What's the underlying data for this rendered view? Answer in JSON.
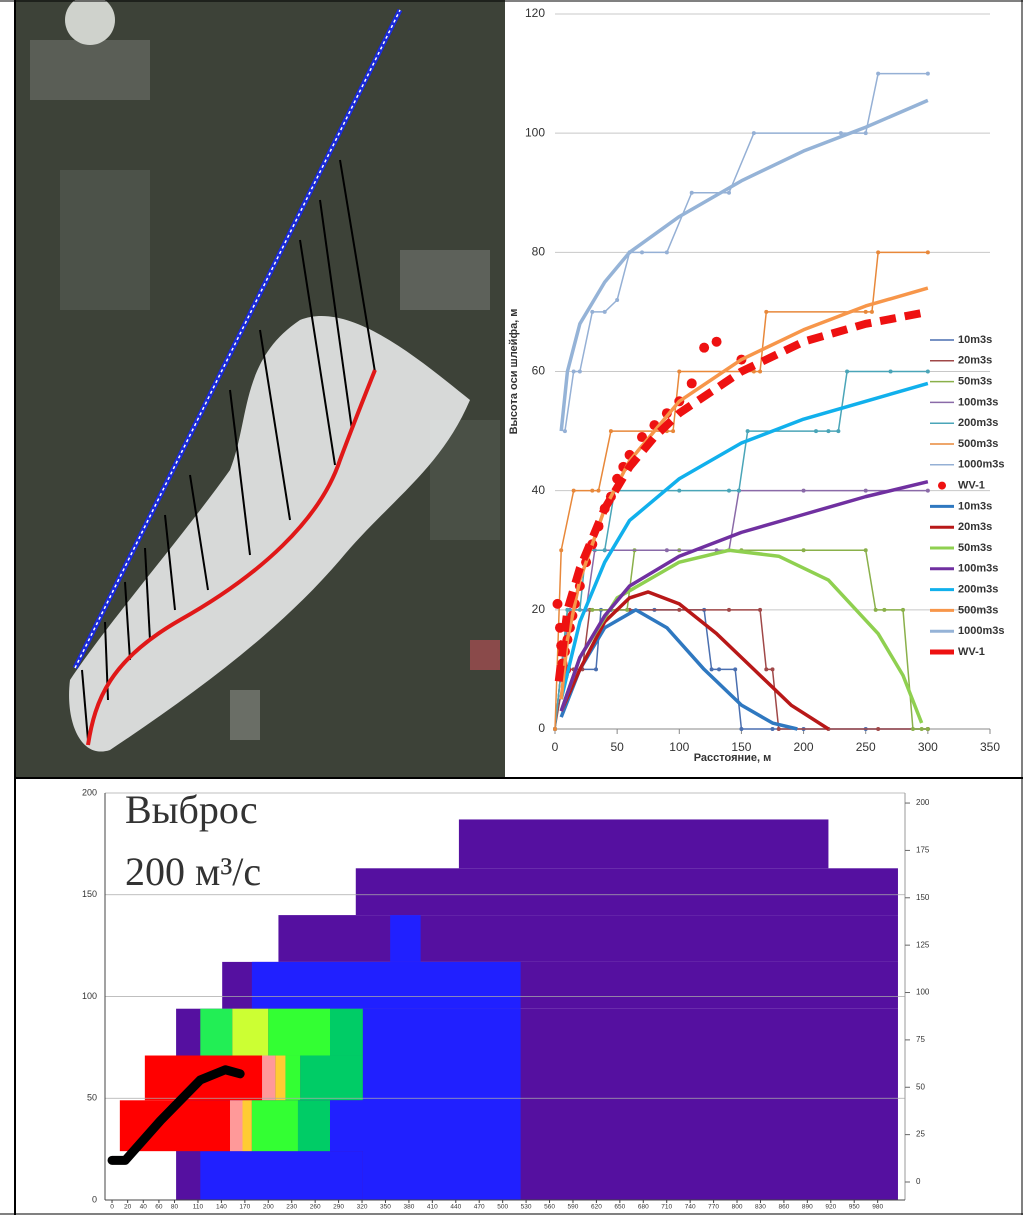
{
  "chart_data": [
    {
      "type": "line",
      "xlabel": "Расстояние, м",
      "ylabel": "Высота оси шлейфа, м",
      "xlim": [
        0,
        350
      ],
      "xticks": [
        0,
        50,
        100,
        150,
        200,
        250,
        300,
        350
      ],
      "ylim": [
        0,
        120
      ],
      "yticks": [
        0,
        20,
        40,
        60,
        80,
        100,
        120
      ],
      "grid": true,
      "legend": "right",
      "series": [
        {
          "name": "10m3s",
          "color": "#4a6fb0",
          "style": "steps",
          "x": [
            0,
            5,
            10,
            33,
            37,
            45,
            80,
            120,
            126,
            132,
            145,
            150,
            175,
            200,
            250,
            300
          ],
          "values": [
            0,
            10,
            10,
            10,
            20,
            20,
            20,
            20,
            10,
            10,
            10,
            0,
            0,
            0,
            0,
            0
          ]
        },
        {
          "name": "20m3s",
          "color": "#a04848",
          "style": "steps",
          "x": [
            0,
            8,
            15,
            22,
            28,
            60,
            100,
            140,
            165,
            170,
            175,
            180,
            220,
            260,
            300
          ],
          "values": [
            0,
            10,
            10,
            10,
            20,
            20,
            20,
            20,
            20,
            10,
            10,
            0,
            0,
            0,
            0
          ]
        },
        {
          "name": "50m3s",
          "color": "#8ab04a",
          "style": "steps",
          "x": [
            0,
            10,
            30,
            50,
            58,
            64,
            100,
            150,
            200,
            250,
            258,
            265,
            280,
            288,
            295,
            300
          ],
          "values": [
            0,
            20,
            20,
            20,
            20,
            30,
            30,
            30,
            30,
            30,
            20,
            20,
            20,
            0,
            0,
            0
          ]
        },
        {
          "name": "100m3s",
          "color": "#8a6aa8",
          "style": "steps",
          "x": [
            0,
            5,
            12,
            25,
            32,
            40,
            90,
            130,
            140,
            148,
            200,
            250,
            300
          ],
          "values": [
            0,
            10,
            20,
            20,
            30,
            30,
            30,
            30,
            30,
            40,
            40,
            40,
            40
          ]
        },
        {
          "name": "200m3s",
          "color": "#4aa5b8",
          "style": "steps",
          "x": [
            0,
            10,
            20,
            25,
            40,
            48,
            100,
            140,
            148,
            155,
            210,
            220,
            228,
            235,
            270,
            300
          ],
          "values": [
            0,
            20,
            20,
            30,
            30,
            40,
            40,
            40,
            40,
            50,
            50,
            50,
            50,
            60,
            60,
            60
          ]
        },
        {
          "name": "500m3s",
          "color": "#e8883a",
          "style": "steps",
          "x": [
            0,
            5,
            15,
            30,
            35,
            45,
            90,
            95,
            100,
            160,
            165,
            170,
            250,
            255,
            260,
            300
          ],
          "values": [
            0,
            30,
            40,
            40,
            40,
            50,
            50,
            50,
            60,
            60,
            60,
            70,
            70,
            70,
            80,
            80
          ]
        },
        {
          "name": "1000m3s",
          "color": "#95b0d5",
          "style": "steps",
          "x": [
            8,
            15,
            20,
            30,
            40,
            50,
            60,
            70,
            90,
            110,
            140,
            160,
            230,
            250,
            260,
            300
          ],
          "values": [
            50,
            60,
            60,
            70,
            70,
            72,
            80,
            80,
            80,
            90,
            90,
            100,
            100,
            100,
            110,
            110
          ]
        },
        {
          "name": "WV-1",
          "color": "#ee1111",
          "style": "dots",
          "x": [
            2,
            4,
            5,
            6,
            7,
            8,
            9,
            10,
            12,
            14,
            16,
            20,
            25,
            30,
            35,
            40,
            45,
            50,
            55,
            60,
            70,
            80,
            90,
            100,
            110,
            120,
            130,
            150
          ],
          "values": [
            21,
            17,
            14,
            11,
            9,
            13,
            10,
            15,
            17,
            19,
            21,
            24,
            28,
            31,
            34,
            37,
            39,
            42,
            44,
            46,
            49,
            51,
            53,
            55,
            58,
            64,
            65,
            62
          ]
        },
        {
          "name": "10m3s",
          "color": "#2f78c0",
          "style": "line",
          "x": [
            5,
            20,
            40,
            65,
            90,
            120,
            150,
            175,
            195
          ],
          "values": [
            2,
            10,
            17,
            20,
            17,
            10,
            4,
            1,
            0
          ]
        },
        {
          "name": "20m3s",
          "color": "#b81818",
          "style": "line",
          "x": [
            5,
            20,
            40,
            60,
            75,
            100,
            130,
            160,
            190,
            220
          ],
          "values": [
            3,
            10,
            18,
            22,
            23,
            21,
            16,
            10,
            4,
            0
          ]
        },
        {
          "name": "50m3s",
          "color": "#8fd050",
          "style": "line",
          "x": [
            5,
            20,
            50,
            100,
            140,
            180,
            220,
            260,
            280,
            295
          ],
          "values": [
            3,
            12,
            22,
            28,
            30,
            29,
            25,
            16,
            9,
            1
          ]
        },
        {
          "name": "100m3s",
          "color": "#7030a0",
          "style": "line",
          "x": [
            5,
            20,
            40,
            60,
            100,
            150,
            200,
            250,
            300
          ],
          "values": [
            3,
            12,
            19,
            24,
            29,
            33,
            36,
            39,
            41.5
          ]
        },
        {
          "name": "200m3s",
          "color": "#11b0ec",
          "style": "line",
          "x": [
            5,
            20,
            40,
            60,
            100,
            150,
            200,
            250,
            300
          ],
          "values": [
            5,
            18,
            28,
            35,
            42,
            48,
            52,
            55,
            58
          ]
        },
        {
          "name": "500m3s",
          "color": "#f7964a",
          "style": "line",
          "x": [
            5,
            10,
            20,
            40,
            60,
            100,
            150,
            200,
            250,
            300
          ],
          "values": [
            5,
            15,
            25,
            37,
            45,
            55,
            62,
            67,
            71,
            74
          ]
        },
        {
          "name": "1000m3s",
          "color": "#95b3d7",
          "style": "line",
          "x": [
            5,
            10,
            20,
            40,
            60,
            100,
            150,
            200,
            250,
            300
          ],
          "values": [
            50,
            60,
            68,
            75,
            80,
            86,
            92,
            97,
            101,
            105.5
          ]
        },
        {
          "name": "WV-1",
          "color": "#ee1111",
          "style": "dashed",
          "x": [
            3,
            10,
            20,
            40,
            60,
            80,
            100,
            150,
            200,
            250,
            300
          ],
          "values": [
            8,
            20,
            27,
            37,
            44,
            49,
            53,
            60,
            65,
            68,
            70
          ]
        }
      ]
    },
    {
      "type": "grid",
      "annotations": [
        "Выброс",
        "200 м³/с"
      ],
      "xlim": [
        -9,
        1015
      ],
      "xticks": [
        0,
        20,
        40,
        60,
        80,
        110,
        140,
        170,
        200,
        230,
        260,
        290,
        320,
        350,
        380,
        410,
        440,
        470,
        500,
        530,
        560,
        590,
        620,
        650,
        680,
        710,
        740,
        770,
        800,
        830,
        860,
        890,
        920,
        950,
        980
      ],
      "ylim": [
        0,
        200
      ],
      "yticks": [
        0,
        50,
        100,
        150,
        200
      ],
      "y2lim": [
        -9.5,
        205.3
      ],
      "y2ticks": [
        0,
        25,
        50,
        75,
        100,
        125,
        150,
        175,
        200
      ],
      "grid": true,
      "regions": [
        {
          "x": [
            444,
            917
          ],
          "y": [
            163,
            187
          ],
          "color": "#5510a0"
        },
        {
          "x": [
            312,
            1006
          ],
          "y": [
            140,
            163
          ],
          "color": "#5510a0"
        },
        {
          "x": [
            213,
            1006
          ],
          "y": [
            117,
            140
          ],
          "color": "#5510a0"
        },
        {
          "x": [
            141,
            1006
          ],
          "y": [
            94,
            117
          ],
          "color": "#5510a0"
        },
        {
          "x": [
            82,
            1006
          ],
          "y": [
            0,
            94
          ],
          "color": "#5510a0"
        },
        {
          "x": [
            356,
            395
          ],
          "y": [
            117,
            140
          ],
          "color": "#2020ff"
        },
        {
          "x": [
            179,
            523
          ],
          "y": [
            94,
            117
          ],
          "color": "#2020ff"
        },
        {
          "x": [
            321,
            523
          ],
          "y": [
            0,
            94
          ],
          "color": "#2020ff"
        },
        {
          "x": [
            113,
            321
          ],
          "y": [
            0,
            24
          ],
          "color": "#2020ff"
        },
        {
          "x": [
            113,
            154
          ],
          "y": [
            71,
            94
          ],
          "color": "#22ee55"
        },
        {
          "x": [
            154,
            200
          ],
          "y": [
            71,
            94
          ],
          "color": "#ccff33"
        },
        {
          "x": [
            200,
            279
          ],
          "y": [
            71,
            94
          ],
          "color": "#33ff33"
        },
        {
          "x": [
            279,
            321
          ],
          "y": [
            71,
            94
          ],
          "color": "#00cc66"
        },
        {
          "x": [
            42,
            192
          ],
          "y": [
            49,
            71
          ],
          "color": "#ff0000"
        },
        {
          "x": [
            192,
            209
          ],
          "y": [
            49,
            71
          ],
          "color": "#ff9999"
        },
        {
          "x": [
            209,
            222
          ],
          "y": [
            49,
            71
          ],
          "color": "#ffcc33"
        },
        {
          "x": [
            222,
            241
          ],
          "y": [
            49,
            71
          ],
          "color": "#33ff33"
        },
        {
          "x": [
            241,
            321
          ],
          "y": [
            49,
            71
          ],
          "color": "#00cc66"
        },
        {
          "x": [
            10,
            151
          ],
          "y": [
            24,
            49
          ],
          "color": "#ff0000"
        },
        {
          "x": [
            151,
            167
          ],
          "y": [
            24,
            49
          ],
          "color": "#ff9999"
        },
        {
          "x": [
            167,
            179
          ],
          "y": [
            24,
            49
          ],
          "color": "#ffcc33"
        },
        {
          "x": [
            179,
            238
          ],
          "y": [
            24,
            49
          ],
          "color": "#33ff33"
        },
        {
          "x": [
            238,
            279
          ],
          "y": [
            24,
            49
          ],
          "color": "#00cc66"
        },
        {
          "x": [
            279,
            363
          ],
          "y": [
            24,
            49
          ],
          "color": "#2020ff"
        }
      ],
      "series": [
        {
          "color": "#000000",
          "x": [
            0,
            17,
            62,
            113,
            145,
            164
          ],
          "values": [
            19.5,
            19.5,
            39,
            59,
            64,
            62
          ]
        }
      ]
    }
  ]
}
